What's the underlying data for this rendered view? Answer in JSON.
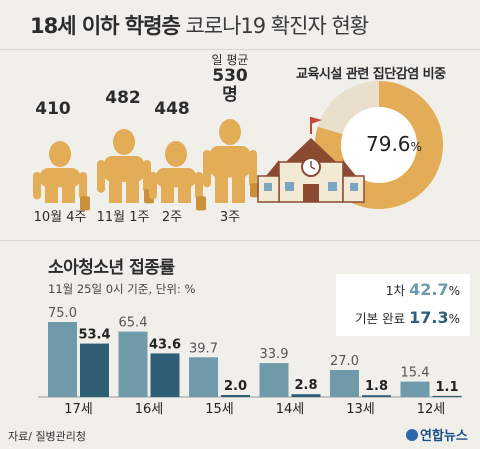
{
  "header": {
    "title_bold": "18세 이하 학령층",
    "title_light": "코로나19 확진자 현황"
  },
  "weekly": {
    "avg_label": "일 평균",
    "avg_value": "530명",
    "weeks": [
      {
        "label": "10월 4주",
        "value": "410"
      },
      {
        "label": "11월 1주",
        "value": "482"
      },
      {
        "label": "2주",
        "value": "448"
      },
      {
        "label": "3주",
        "value": "530"
      }
    ]
  },
  "education": {
    "title": "교육시설 관련 집단감염 비중",
    "percent": 79.6,
    "value_text": "79.6",
    "unit": "%"
  },
  "vaccination": {
    "title": "소아청소년 접종률",
    "subtitle": "11월 25일 0시 기준, 단위: %",
    "legend": [
      {
        "label": "1차",
        "value": "42.7",
        "unit": "%",
        "color": "#6e9aaa"
      },
      {
        "label": "기본 완료",
        "value": "17.3",
        "unit": "%",
        "color": "#2e5f77"
      }
    ]
  },
  "chart_data": {
    "type": "bar",
    "title": "소아청소년 접종률",
    "categories": [
      "17세",
      "16세",
      "15세",
      "14세",
      "13세",
      "12세"
    ],
    "series": [
      {
        "name": "1차",
        "values": [
          75.0,
          65.4,
          39.7,
          33.9,
          27.0,
          15.4
        ],
        "labels": [
          "75.0",
          "65.4",
          "39.7",
          "33.9",
          "27.0",
          "15.4"
        ]
      },
      {
        "name": "기본 완료",
        "values": [
          53.4,
          43.6,
          2.0,
          2.8,
          1.8,
          1.1
        ],
        "labels": [
          "53.4",
          "43.6",
          "2.0",
          "2.8",
          "1.8",
          "1.1"
        ]
      }
    ],
    "ylim": [
      0,
      80
    ]
  },
  "colors": {
    "first_dose": "#6e9aaa",
    "complete": "#2e5f77",
    "figure": "#e3ad57",
    "pie_fill": "#e3ad57",
    "pie_rest": "#e8dfcd"
  },
  "footer": {
    "source": "자료/ 질병관리청",
    "logo": "연합뉴스"
  }
}
